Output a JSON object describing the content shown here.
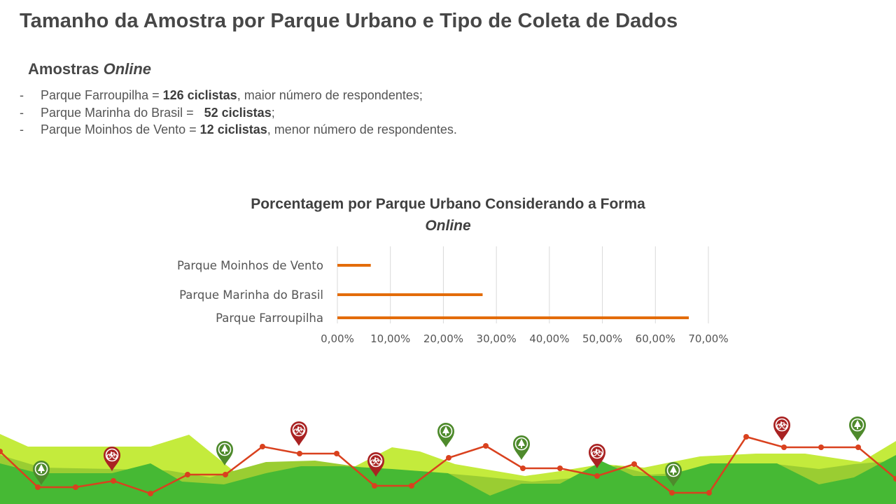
{
  "slide": {
    "title": "Tamanho da Amostra por Parque Urbano e Tipo de Coleta de Dados",
    "subheading_prefix": "Amostras ",
    "subheading_emph": "Online",
    "bullets": [
      {
        "dash": "-",
        "pre": "Parque Farroupilha = ",
        "bold": "126 ciclistas",
        "post": ", maior número de respondentes;"
      },
      {
        "dash": "-",
        "pre": "Parque Marinha do Brasil =   ",
        "bold": "52 ciclistas",
        "post": ";"
      },
      {
        "dash": "-",
        "pre": "Parque Moinhos de Vento = ",
        "bold": "12 ciclistas",
        "post": ", menor número de respondentes."
      }
    ]
  },
  "chart_data": {
    "type": "bar",
    "orientation": "horizontal",
    "title_line1": "Porcentagem por Parque Urbano Considerando a Forma",
    "title_line2": "Online",
    "categories": [
      "Parque Farroupilha",
      "Parque Marinha do Brasil",
      "Parque Moinhos de Vento"
    ],
    "values": [
      66.3,
      27.4,
      6.3
    ],
    "xlim": [
      0,
      70
    ],
    "xticks": [
      "0,00%",
      "10,00%",
      "20,00%",
      "30,00%",
      "40,00%",
      "50,00%",
      "60,00%",
      "70,00%"
    ],
    "grid": true,
    "bar_color": "#E36C0A",
    "grid_color": "#D9D9D9"
  },
  "decoration": {
    "colors": {
      "light_green": "#C4EB3C",
      "mid_green": "#9ACD32",
      "dark_green": "#46B934",
      "route_red": "#D9411E",
      "pin_red": "#A92222",
      "pin_green": "#4E8A2C"
    },
    "pins": [
      {
        "icon": "tree-icon",
        "color": "green"
      },
      {
        "icon": "bicycle-icon",
        "color": "red"
      },
      {
        "icon": "tree-icon",
        "color": "green"
      },
      {
        "icon": "bicycle-icon",
        "color": "red"
      },
      {
        "icon": "tree-icon",
        "color": "green"
      },
      {
        "icon": "bicycle-icon",
        "color": "red"
      },
      {
        "icon": "tree-icon",
        "color": "green"
      },
      {
        "icon": "bicycle-icon",
        "color": "red"
      },
      {
        "icon": "tree-icon",
        "color": "green"
      },
      {
        "icon": "bicycle-icon",
        "color": "red"
      },
      {
        "icon": "tree-icon",
        "color": "green"
      }
    ]
  }
}
